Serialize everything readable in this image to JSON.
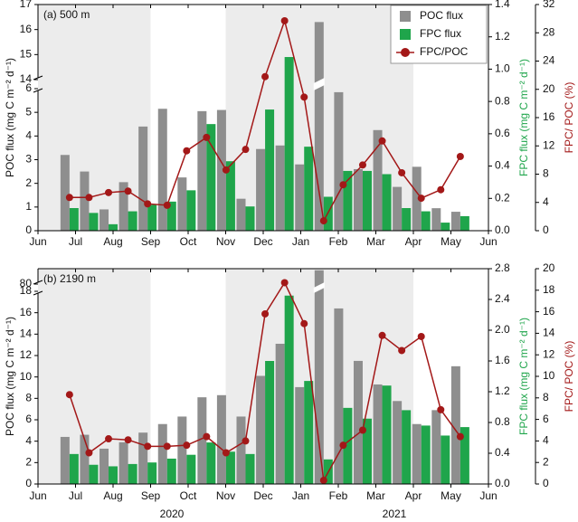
{
  "chart_data": [
    {
      "type": "combo",
      "title": "(a) 500 m",
      "x": [
        0.84,
        1.36,
        1.88,
        2.4,
        2.92,
        3.44,
        3.96,
        4.49,
        5.01,
        5.53,
        6.05,
        6.57,
        7.09,
        7.61,
        8.13,
        8.65,
        9.17,
        9.69,
        10.21,
        10.73,
        11.25
      ],
      "xlim": [
        0,
        12
      ],
      "xticks": [
        {
          "value": 0,
          "label": "Jun"
        },
        {
          "value": 1,
          "label": "Jul"
        },
        {
          "value": 2,
          "label": "Aug"
        },
        {
          "value": 3,
          "label": "Sep"
        },
        {
          "value": 4,
          "label": "Oct"
        },
        {
          "value": 5,
          "label": "Nov"
        },
        {
          "value": 6,
          "label": "Dec"
        },
        {
          "value": 7,
          "label": "Jan"
        },
        {
          "value": 8,
          "label": "Feb"
        },
        {
          "value": 9,
          "label": "Mar"
        },
        {
          "value": 10,
          "label": "Apr"
        },
        {
          "value": 11,
          "label": "May"
        },
        {
          "value": 12,
          "label": "Jun"
        }
      ],
      "shaded_ranges": [
        [
          0,
          3
        ],
        [
          5,
          10
        ]
      ],
      "y_segments": [
        {
          "ylim": [
            0,
            6
          ],
          "yticks": [
            0,
            1,
            2,
            3,
            4,
            5,
            6
          ]
        },
        {
          "ylim": [
            14,
            17
          ],
          "yticks": [
            14,
            15,
            16,
            17
          ]
        }
      ],
      "ylabel": "POC flux (mg C m⁻² d⁻¹)",
      "y2lim": [
        0,
        1.4
      ],
      "y2ticks": [
        {
          "value": 0,
          "label": "0.0"
        },
        0.2,
        0.4,
        0.6,
        0.8,
        {
          "value": 1,
          "label": "1.0"
        },
        1.2,
        1.4
      ],
      "y2label": "FPC  flux  (mg C m⁻² d⁻¹)",
      "y3lim": [
        0,
        32
      ],
      "y3ticks": [
        0,
        4,
        8,
        12,
        16,
        20,
        24,
        28,
        32
      ],
      "y3label": "FPC/ POC (%)",
      "legend": "upper right",
      "series": [
        {
          "name": "POC flux",
          "color": "#8e8e8e",
          "values": [
            3.2,
            2.5,
            0.9,
            2.05,
            4.4,
            5.15,
            2.25,
            5.05,
            5.1,
            1.35,
            3.45,
            3.6,
            2.8,
            16.3,
            5.85,
            2.6,
            4.25,
            1.85,
            2.7,
            0.95,
            0.8
          ]
        },
        {
          "name": "FPC flux",
          "color": "#1fa54b",
          "axis": "y2",
          "values": [
            0.14,
            0.11,
            0.04,
            0.12,
            0.16,
            0.18,
            0.25,
            0.66,
            0.43,
            0.15,
            0.75,
            1.075,
            0.52,
            0.21,
            0.37,
            0.37,
            0.35,
            0.14,
            0.12,
            0.05,
            0.09
          ]
        },
        {
          "name": "FPC/POC",
          "color": "#a31818",
          "axis": "y3",
          "values": [
            4.7,
            4.7,
            5.4,
            5.6,
            3.8,
            3.6,
            11.3,
            13.2,
            8.6,
            11.5,
            21.8,
            29.7,
            18.9,
            1.4,
            6.5,
            9.3,
            12.7,
            8.2,
            4.6,
            5.8,
            10.5
          ]
        }
      ]
    },
    {
      "type": "combo",
      "title": "(b) 2190 m",
      "x": [
        0.84,
        1.36,
        1.88,
        2.4,
        2.92,
        3.44,
        3.96,
        4.49,
        5.01,
        5.53,
        6.05,
        6.57,
        7.09,
        7.61,
        8.13,
        8.65,
        9.17,
        9.69,
        10.21,
        10.73,
        11.25
      ],
      "xlim": [
        0,
        12
      ],
      "xticks": [
        {
          "value": 0,
          "label": "Jun"
        },
        {
          "value": 1,
          "label": "Jul"
        },
        {
          "value": 2,
          "label": "Aug"
        },
        {
          "value": 3,
          "label": "Sep"
        },
        {
          "value": 4,
          "label": "Oct"
        },
        {
          "value": 5,
          "label": "Nov"
        },
        {
          "value": 6,
          "label": "Dec"
        },
        {
          "value": 7,
          "label": "Jan"
        },
        {
          "value": 8,
          "label": "Feb"
        },
        {
          "value": 9,
          "label": "Mar"
        },
        {
          "value": 10,
          "label": "Apr"
        },
        {
          "value": 11,
          "label": "May"
        },
        {
          "value": 12,
          "label": "Jun"
        }
      ],
      "year_labels": [
        "2020",
        "2021"
      ],
      "shaded_ranges": [
        [
          0,
          3
        ],
        [
          5,
          10
        ]
      ],
      "y_segments": [
        {
          "ylim": [
            0,
            18
          ],
          "yticks": [
            0,
            2,
            4,
            6,
            8,
            10,
            12,
            14,
            16,
            18
          ]
        },
        {
          "ylim": [
            80,
            82
          ],
          "yticks": [
            80
          ]
        }
      ],
      "ylabel": "POC flux (mg C m⁻² d⁻¹)",
      "y2lim": [
        0,
        2.8
      ],
      "y2ticks": [
        {
          "value": 0,
          "label": "0.0"
        },
        0.4,
        0.8,
        1.2,
        1.6,
        {
          "value": 2,
          "label": "2.0"
        },
        2.4,
        2.8
      ],
      "y2label": "FPC  flux  (mg C m⁻² d⁻¹)",
      "y3lim": [
        0,
        20
      ],
      "y3ticks": [
        0,
        2,
        4,
        6,
        8,
        10,
        12,
        14,
        16,
        18,
        20
      ],
      "y3label": "FPC/ POC (%)",
      "series": [
        {
          "name": "POC flux",
          "color": "#8e8e8e",
          "values": [
            4.4,
            4.6,
            3.3,
            3.9,
            4.8,
            5.6,
            6.3,
            8.1,
            8.3,
            6.3,
            10.1,
            13.1,
            9.05,
            81.8,
            16.4,
            11.5,
            9.3,
            7.75,
            5.6,
            6.9,
            11.0
          ]
        },
        {
          "name": "FPC flux",
          "color": "#1fa54b",
          "axis": "y2",
          "values": [
            0.39,
            0.25,
            0.23,
            0.26,
            0.28,
            0.33,
            0.38,
            0.54,
            0.42,
            0.39,
            1.6,
            2.45,
            1.34,
            0.32,
            0.99,
            0.85,
            1.28,
            0.96,
            0.76,
            0.63,
            0.74
          ]
        },
        {
          "name": "FPC/POC",
          "color": "#a31818",
          "axis": "y3",
          "values": [
            8.3,
            2.9,
            4.2,
            4.1,
            3.5,
            3.5,
            3.6,
            4.4,
            2.9,
            4.0,
            15.8,
            18.7,
            14.9,
            0.34,
            3.6,
            5.0,
            13.8,
            12.4,
            13.7,
            6.9,
            4.4
          ]
        }
      ]
    }
  ]
}
